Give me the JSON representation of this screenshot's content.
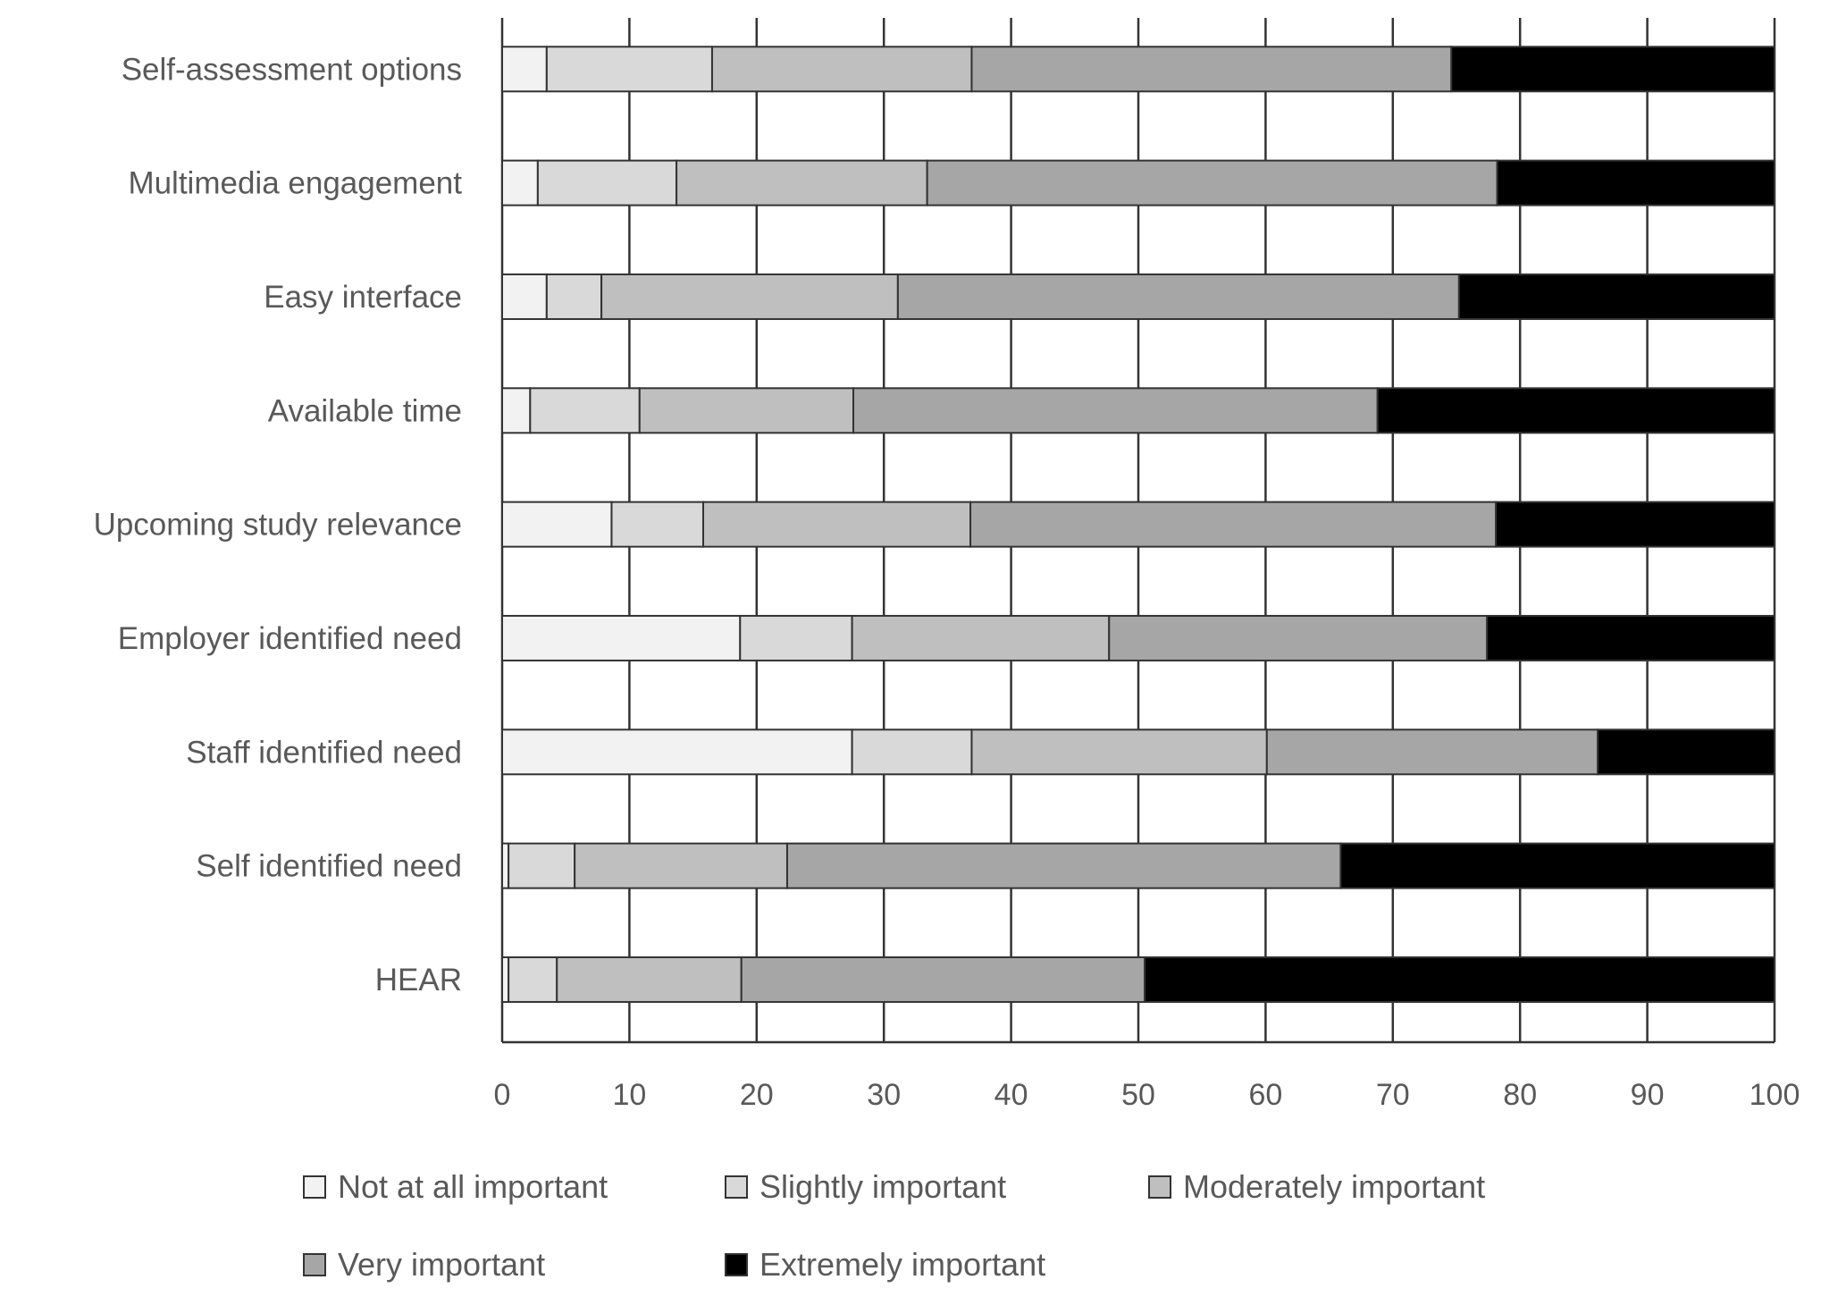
{
  "chart_data": {
    "type": "bar",
    "orientation": "horizontal",
    "stacked": true,
    "title": "",
    "xlabel": "",
    "ylabel": "",
    "xlim": [
      0,
      100
    ],
    "xticks": [
      "0",
      "10",
      "20",
      "30",
      "40",
      "50",
      "60",
      "70",
      "80",
      "90",
      "100"
    ],
    "grid": "vertical",
    "legend_position": "bottom",
    "categories": [
      "Self-assessment options",
      "Multimedia engagement",
      "Easy interface",
      "Available time",
      "Upcoming study relevance",
      "Employer identified need",
      "Staff identified need",
      "Self identified need",
      "HEAR"
    ],
    "series": [
      {
        "name": "Not at all important",
        "color": "#f2f2f2",
        "values": [
          3.5,
          2.8,
          3.5,
          2.2,
          8.6,
          18.7,
          27.5,
          0.5,
          0.5
        ]
      },
      {
        "name": "Slightly important",
        "color": "#d9d9d9",
        "values": [
          13.0,
          10.9,
          4.3,
          8.6,
          7.2,
          8.8,
          9.4,
          5.2,
          3.8
        ]
      },
      {
        "name": "Moderately important",
        "color": "#bfbfbf",
        "values": [
          20.4,
          19.7,
          23.3,
          16.8,
          21.0,
          20.2,
          23.2,
          16.7,
          14.5
        ]
      },
      {
        "name": "Very important",
        "color": "#a6a6a6",
        "values": [
          37.7,
          44.8,
          44.1,
          41.2,
          41.3,
          29.7,
          26.0,
          43.5,
          31.7
        ]
      },
      {
        "name": "Extremely important",
        "color": "#000000",
        "values": [
          25.4,
          21.8,
          24.8,
          31.2,
          21.9,
          22.6,
          13.9,
          34.1,
          49.5
        ]
      }
    ]
  }
}
